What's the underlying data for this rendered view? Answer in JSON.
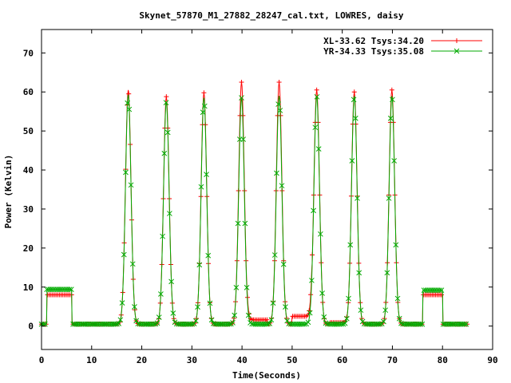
{
  "chart_data": {
    "type": "line",
    "title": "Skynet_57870_M1_27882_28247_cal.txt, LOWRES, daisy",
    "xlabel": "Time(Seconds)",
    "ylabel": "Power (Kelvin)",
    "xlim": [
      0,
      90
    ],
    "ylim": [
      -6,
      76
    ],
    "xticks": [
      0,
      10,
      20,
      30,
      40,
      50,
      60,
      70,
      80,
      90
    ],
    "yticks": [
      0,
      10,
      20,
      30,
      40,
      50,
      60,
      70
    ],
    "grid": false,
    "legend_position": "top-right",
    "series": [
      {
        "name": "XL-33.62 Tsys:34.20",
        "color": "#ff0000",
        "marker": "plus",
        "baseline": 0.5,
        "cal_segments": [
          [
            1.0,
            6.0,
            8.0
          ],
          [
            76.0,
            80.0,
            8.0
          ]
        ],
        "offset_segments": [
          [
            41.0,
            45.0,
            1.6
          ],
          [
            50.0,
            54.0,
            2.5
          ],
          [
            57.5,
            61.0,
            0.9
          ]
        ],
        "peaks": [
          {
            "t": 17.3,
            "peak": 60.5
          },
          {
            "t": 24.9,
            "peak": 58.8
          },
          {
            "t": 32.4,
            "peak": 59.8
          },
          {
            "t": 39.9,
            "peak": 62.5
          },
          {
            "t": 47.4,
            "peak": 62.5
          },
          {
            "t": 54.9,
            "peak": 60.5
          },
          {
            "t": 62.4,
            "peak": 60.0
          },
          {
            "t": 69.9,
            "peak": 60.5
          }
        ],
        "x_range": [
          0,
          85
        ]
      },
      {
        "name": "YR-34.33 Tsys:35.08",
        "color": "#00aa00",
        "marker": "cross",
        "baseline": 0.5,
        "cal_segments": [
          [
            1.0,
            6.0,
            9.4
          ],
          [
            76.0,
            80.0,
            9.2
          ]
        ],
        "offset_segments": [],
        "peaks": [
          {
            "t": 17.3,
            "peak": 59.3
          },
          {
            "t": 24.9,
            "peak": 57.5
          },
          {
            "t": 32.4,
            "peak": 58.5
          },
          {
            "t": 39.9,
            "peak": 58.5
          },
          {
            "t": 47.4,
            "peak": 59.0
          },
          {
            "t": 54.9,
            "peak": 59.0
          },
          {
            "t": 62.4,
            "peak": 59.0
          },
          {
            "t": 69.9,
            "peak": 59.0
          }
        ],
        "x_range": [
          0,
          85
        ]
      }
    ]
  }
}
